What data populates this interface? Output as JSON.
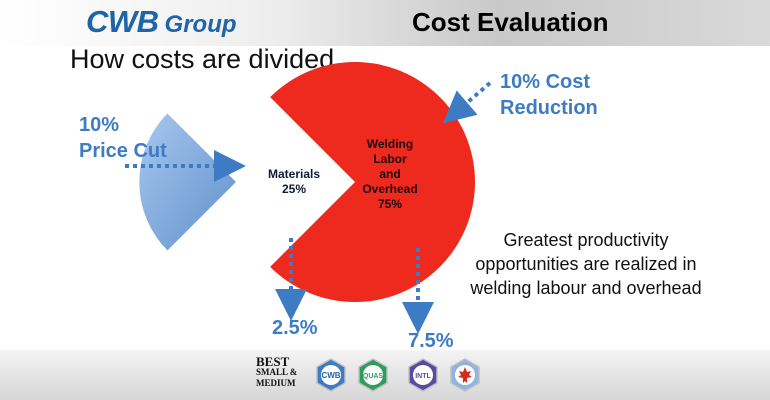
{
  "header": {
    "brand_main": "CWB",
    "brand_sub": "Group",
    "title": "Cost Evaluation"
  },
  "subtitle": "How costs are divided.",
  "annotations": {
    "price_cut_line1": "10%",
    "price_cut_line2": "Price Cut",
    "cost_reduction_line1": "10% Cost",
    "cost_reduction_line2": "Reduction",
    "materials_share": "2.5%",
    "labor_share": "7.5%"
  },
  "note": "Greatest productivity opportunities are realized in welding labour and overhead",
  "footer": {
    "logos": [
      {
        "name": "best-small-medium-logo",
        "text_lines": [
          "BEST",
          "SMALL &",
          "MEDIUM"
        ]
      },
      {
        "name": "cwb-seal-logo",
        "text": "CWB"
      },
      {
        "name": "quas-seal-logo",
        "text": "QUAS"
      },
      {
        "name": "intl-seal-logo",
        "text": "INTL"
      },
      {
        "name": "maple-leaf-seal-logo",
        "text": ""
      }
    ]
  },
  "colors": {
    "labor_slice": "#ee2a1e",
    "materials_slice": "#7fa9dd",
    "accent_blue": "#3d7cc4",
    "brand_blue": "#1f64a8"
  },
  "chart_data": {
    "type": "pie",
    "title": "",
    "slices": [
      {
        "label_lines": [
          "Materials",
          "25%"
        ],
        "value": 25,
        "color": "#7fa9dd",
        "exploded": true
      },
      {
        "label_lines": [
          "Welding",
          "Labor",
          "and",
          "Overhead",
          "75%"
        ],
        "value": 75,
        "color": "#ee2a1e",
        "exploded": false
      }
    ]
  }
}
